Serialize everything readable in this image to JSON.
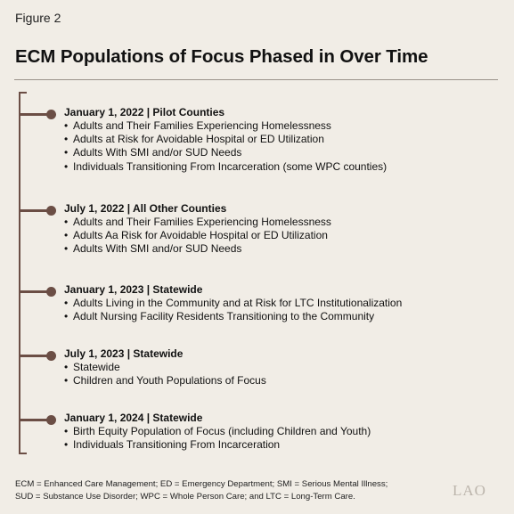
{
  "figure_label": "Figure 2",
  "title": "ECM Populations of Focus Phased in Over Time",
  "milestones": [
    {
      "heading": "January 1, 2022 | Pilot Counties",
      "items": [
        "Adults and Their Families Experiencing Homelessness",
        "Adults at Risk for Avoidable Hospital or ED Utilization",
        "Adults With SMI and/or SUD Needs",
        "Individuals Transitioning From Incarceration (some WPC counties)"
      ]
    },
    {
      "heading": "July 1, 2022 | All Other Counties",
      "items": [
        "Adults and Their Families Experiencing Homelessness",
        "Adults Aa Risk for Avoidable Hospital or ED Utilization",
        "Adults With SMI and/or SUD Needs"
      ]
    },
    {
      "heading": "January 1, 2023 | Statewide",
      "items": [
        "Adults Living in the Community and at Risk for LTC Institutionalization",
        "Adult Nursing Facility Residents Transitioning to the Community"
      ]
    },
    {
      "heading": "July 1, 2023 | Statewide",
      "items": [
        "Statewide",
        "Children and Youth Populations of Focus"
      ]
    },
    {
      "heading": "January 1, 2024 | Statewide",
      "items": [
        "Birth Equity Population of Focus (including Children and Youth)",
        "Individuals Transitioning From Incarceration"
      ]
    }
  ],
  "footnote": {
    "line1": "ECM = Enhanced Care Management; ED = Emergency Department; SMI = Serious Mental Illness;",
    "line2": "SUD = Substance Use Disorder; WPC = Whole Person Care; and LTC = Long-Term Care."
  },
  "logo": "LAO",
  "colors": {
    "background": "#f1ede6",
    "timeline": "#6b4e45",
    "rule": "#9a9189"
  }
}
